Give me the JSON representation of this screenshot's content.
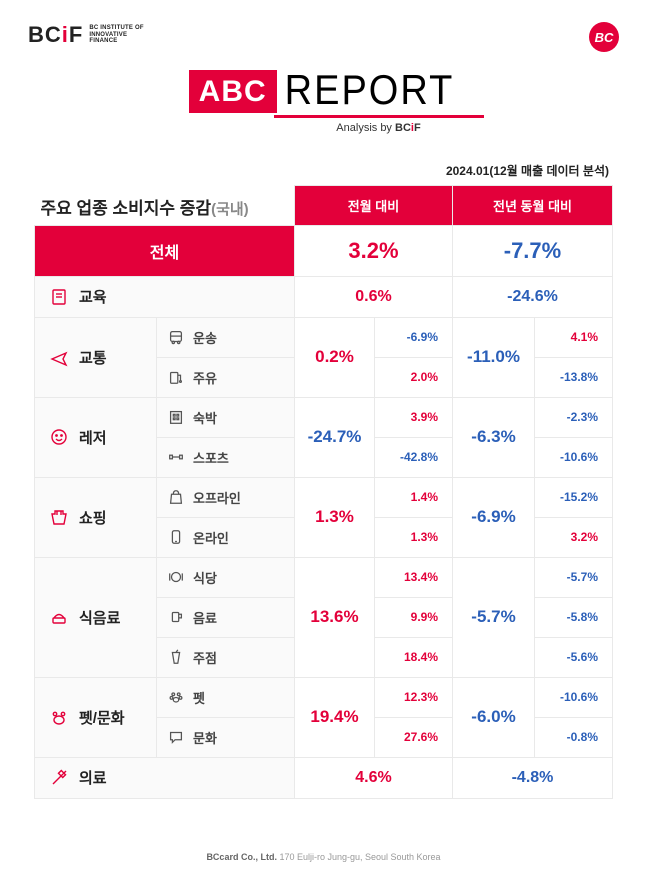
{
  "logo": {
    "bcif_b": "BC",
    "bcif_i": "i",
    "bcif_f": "F",
    "sub1": "BC INSTITUTE OF",
    "sub2": "INNOVATIVE",
    "sub3": "FINANCE",
    "bc_round": "BC"
  },
  "title": {
    "abc": "ABC",
    "report": "REPORT",
    "analysis_pre": "Analysis by ",
    "analysis_b": "BC",
    "analysis_i": "i",
    "analysis_f": "F"
  },
  "date_line": "2024.01(12월 매출 데이터 분석)",
  "headers": {
    "left_main": "주요 업종 소비지수 증감",
    "left_sub": "(국내)",
    "col1": "전월 대비",
    "col2": "전년 동월 대비"
  },
  "total": {
    "label": "전체",
    "mom": "3.2%",
    "yoy": "-7.7%"
  },
  "rows": [
    {
      "cat": "교육",
      "icon": "book",
      "mom": "0.6%",
      "yoy": "-24.6%"
    },
    {
      "cat": "교통",
      "icon": "plane",
      "mom": "0.2%",
      "yoy": "-11.0%",
      "sub": [
        {
          "name": "운송",
          "icon": "bus",
          "mom": "-6.9%",
          "yoy": "4.1%"
        },
        {
          "name": "주유",
          "icon": "fuel",
          "mom": "2.0%",
          "yoy": "-13.8%"
        }
      ]
    },
    {
      "cat": "레저",
      "icon": "smile",
      "mom": "-24.7%",
      "yoy": "-6.3%",
      "sub": [
        {
          "name": "숙박",
          "icon": "hotel",
          "mom": "3.9%",
          "yoy": "-2.3%"
        },
        {
          "name": "스포츠",
          "icon": "dumbbell",
          "mom": "-42.8%",
          "yoy": "-10.6%"
        }
      ]
    },
    {
      "cat": "쇼핑",
      "icon": "shopping",
      "mom": "1.3%",
      "yoy": "-6.9%",
      "sub": [
        {
          "name": "오프라인",
          "icon": "bag",
          "mom": "1.4%",
          "yoy": "-15.2%"
        },
        {
          "name": "온라인",
          "icon": "mobile",
          "mom": "1.3%",
          "yoy": "3.2%"
        }
      ]
    },
    {
      "cat": "식음료",
      "icon": "food",
      "mom": "13.6%",
      "yoy": "-5.7%",
      "sub": [
        {
          "name": "식당",
          "icon": "dish",
          "mom": "13.4%",
          "yoy": "-5.7%"
        },
        {
          "name": "음료",
          "icon": "cup",
          "mom": "9.9%",
          "yoy": "-5.8%"
        },
        {
          "name": "주점",
          "icon": "drink",
          "mom": "18.4%",
          "yoy": "-5.6%"
        }
      ]
    },
    {
      "cat": "펫/문화",
      "icon": "pet",
      "mom": "19.4%",
      "yoy": "-6.0%",
      "sub": [
        {
          "name": "펫",
          "icon": "paw",
          "mom": "12.3%",
          "yoy": "-10.6%"
        },
        {
          "name": "문화",
          "icon": "chat",
          "mom": "27.6%",
          "yoy": "-0.8%"
        }
      ]
    },
    {
      "cat": "의료",
      "icon": "syringe",
      "mom": "4.6%",
      "yoy": "-4.8%"
    }
  ],
  "footer": {
    "company": "BCcard Co., Ltd.",
    "address": " 170 Eulji-ro Jung-gu, Seoul South Korea"
  },
  "colors": {
    "brand": "#e3003a",
    "pos": "#e3003a",
    "neg": "#2b5fb8"
  }
}
